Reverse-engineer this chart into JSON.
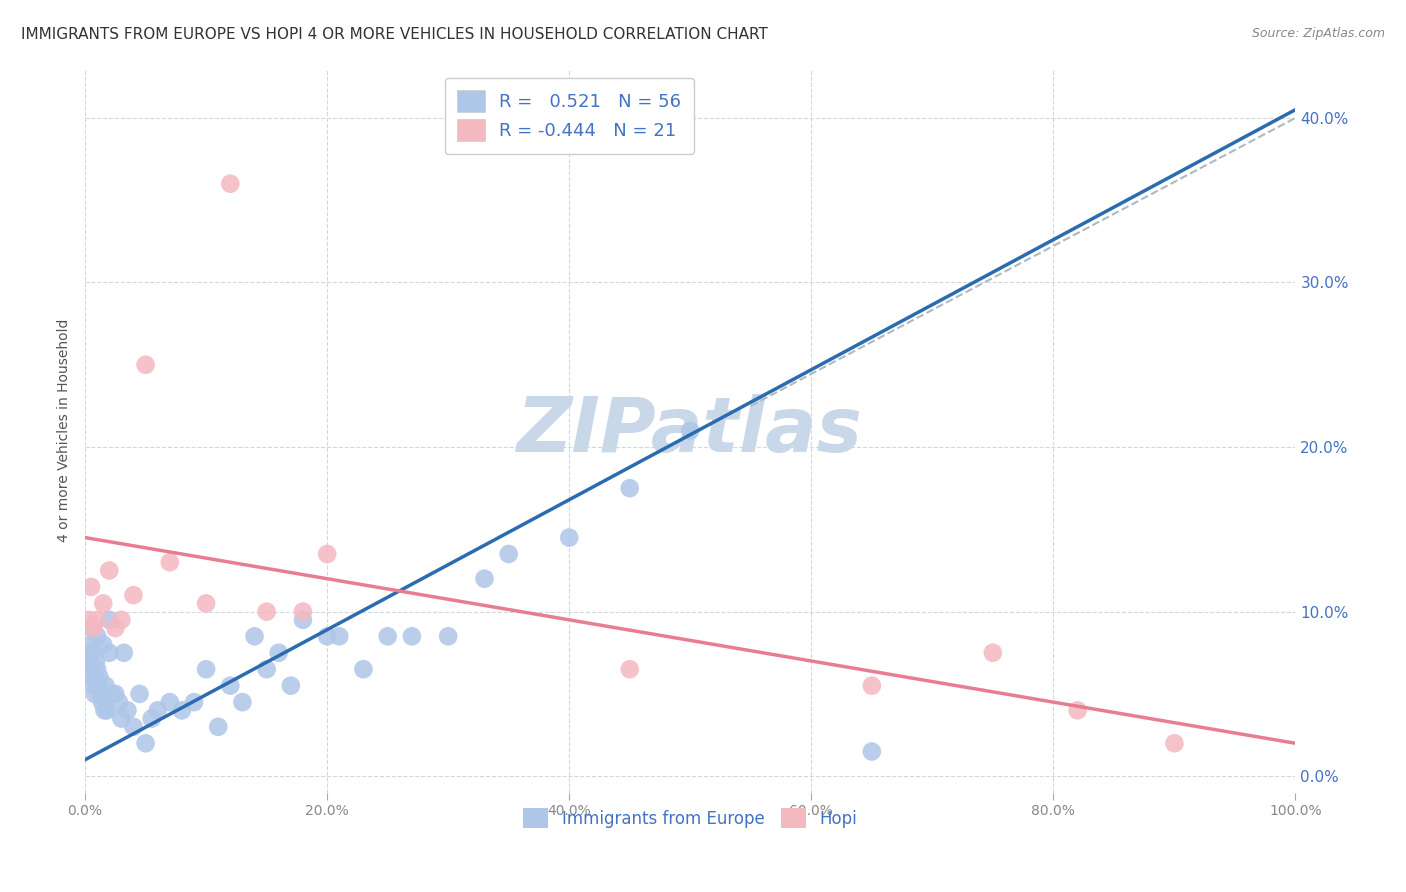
{
  "title": "IMMIGRANTS FROM EUROPE VS HOPI 4 OR MORE VEHICLES IN HOUSEHOLD CORRELATION CHART",
  "source": "Source: ZipAtlas.com",
  "ylabel": "4 or more Vehicles in Household",
  "yticks_labels": [
    "",
    "10.0%",
    "20.0%",
    "30.0%",
    "40.0%"
  ],
  "ytick_values": [
    0,
    10,
    20,
    30,
    40
  ],
  "xlim": [
    0,
    100
  ],
  "ylim": [
    -1,
    43
  ],
  "blue_R": 0.521,
  "blue_N": 56,
  "pink_R": -0.444,
  "pink_N": 21,
  "blue_color": "#aec6e8",
  "pink_color": "#f4b8c1",
  "blue_line_color": "#2b6cb0",
  "pink_line_color": "#e87d91",
  "watermark_color": "#c8d8e8",
  "background_color": "#ffffff",
  "grid_color": "#d0d8e0",
  "text_color": "#4472c4",
  "blue_scatter_x": [
    0.3,
    0.4,
    0.5,
    0.5,
    0.6,
    0.6,
    0.7,
    0.8,
    0.9,
    1.0,
    1.0,
    1.1,
    1.2,
    1.3,
    1.4,
    1.5,
    1.6,
    1.7,
    1.8,
    2.0,
    2.0,
    2.2,
    2.5,
    2.8,
    3.0,
    3.2,
    3.5,
    4.0,
    4.5,
    5.0,
    5.5,
    6.0,
    7.0,
    8.0,
    9.0,
    10.0,
    11.0,
    12.0,
    13.0,
    14.0,
    15.0,
    16.0,
    17.0,
    18.0,
    20.0,
    21.0,
    23.0,
    25.0,
    27.0,
    30.0,
    33.0,
    35.0,
    40.0,
    45.0,
    50.0,
    65.0
  ],
  "blue_scatter_y": [
    7.0,
    6.5,
    8.0,
    9.0,
    7.5,
    6.0,
    5.5,
    5.0,
    7.0,
    8.5,
    6.5,
    5.5,
    6.0,
    5.0,
    4.5,
    8.0,
    4.0,
    5.5,
    4.0,
    7.5,
    9.5,
    5.0,
    5.0,
    4.5,
    3.5,
    7.5,
    4.0,
    3.0,
    5.0,
    2.0,
    3.5,
    4.0,
    4.5,
    4.0,
    4.5,
    6.5,
    3.0,
    5.5,
    4.5,
    8.5,
    6.5,
    7.5,
    5.5,
    9.5,
    8.5,
    8.5,
    6.5,
    8.5,
    8.5,
    8.5,
    12.0,
    13.5,
    14.5,
    17.5,
    21.0,
    1.5
  ],
  "pink_scatter_x": [
    0.3,
    0.5,
    0.7,
    1.0,
    1.5,
    2.0,
    2.5,
    3.0,
    4.0,
    5.0,
    7.0,
    10.0,
    12.0,
    15.0,
    18.0,
    20.0,
    45.0,
    65.0,
    75.0,
    82.0,
    90.0
  ],
  "pink_scatter_y": [
    9.5,
    11.5,
    9.0,
    9.5,
    10.5,
    12.5,
    9.0,
    9.5,
    11.0,
    25.0,
    13.0,
    10.5,
    36.0,
    10.0,
    10.0,
    13.5,
    6.5,
    5.5,
    7.5,
    4.0,
    2.0
  ],
  "blue_line_x": [
    0,
    100
  ],
  "blue_line_y": [
    1.0,
    40.5
  ],
  "pink_line_x": [
    0,
    100
  ],
  "pink_line_y": [
    14.5,
    2.0
  ],
  "dashed_line_x": [
    55,
    100
  ],
  "dashed_line_y": [
    22.5,
    40.0
  ]
}
